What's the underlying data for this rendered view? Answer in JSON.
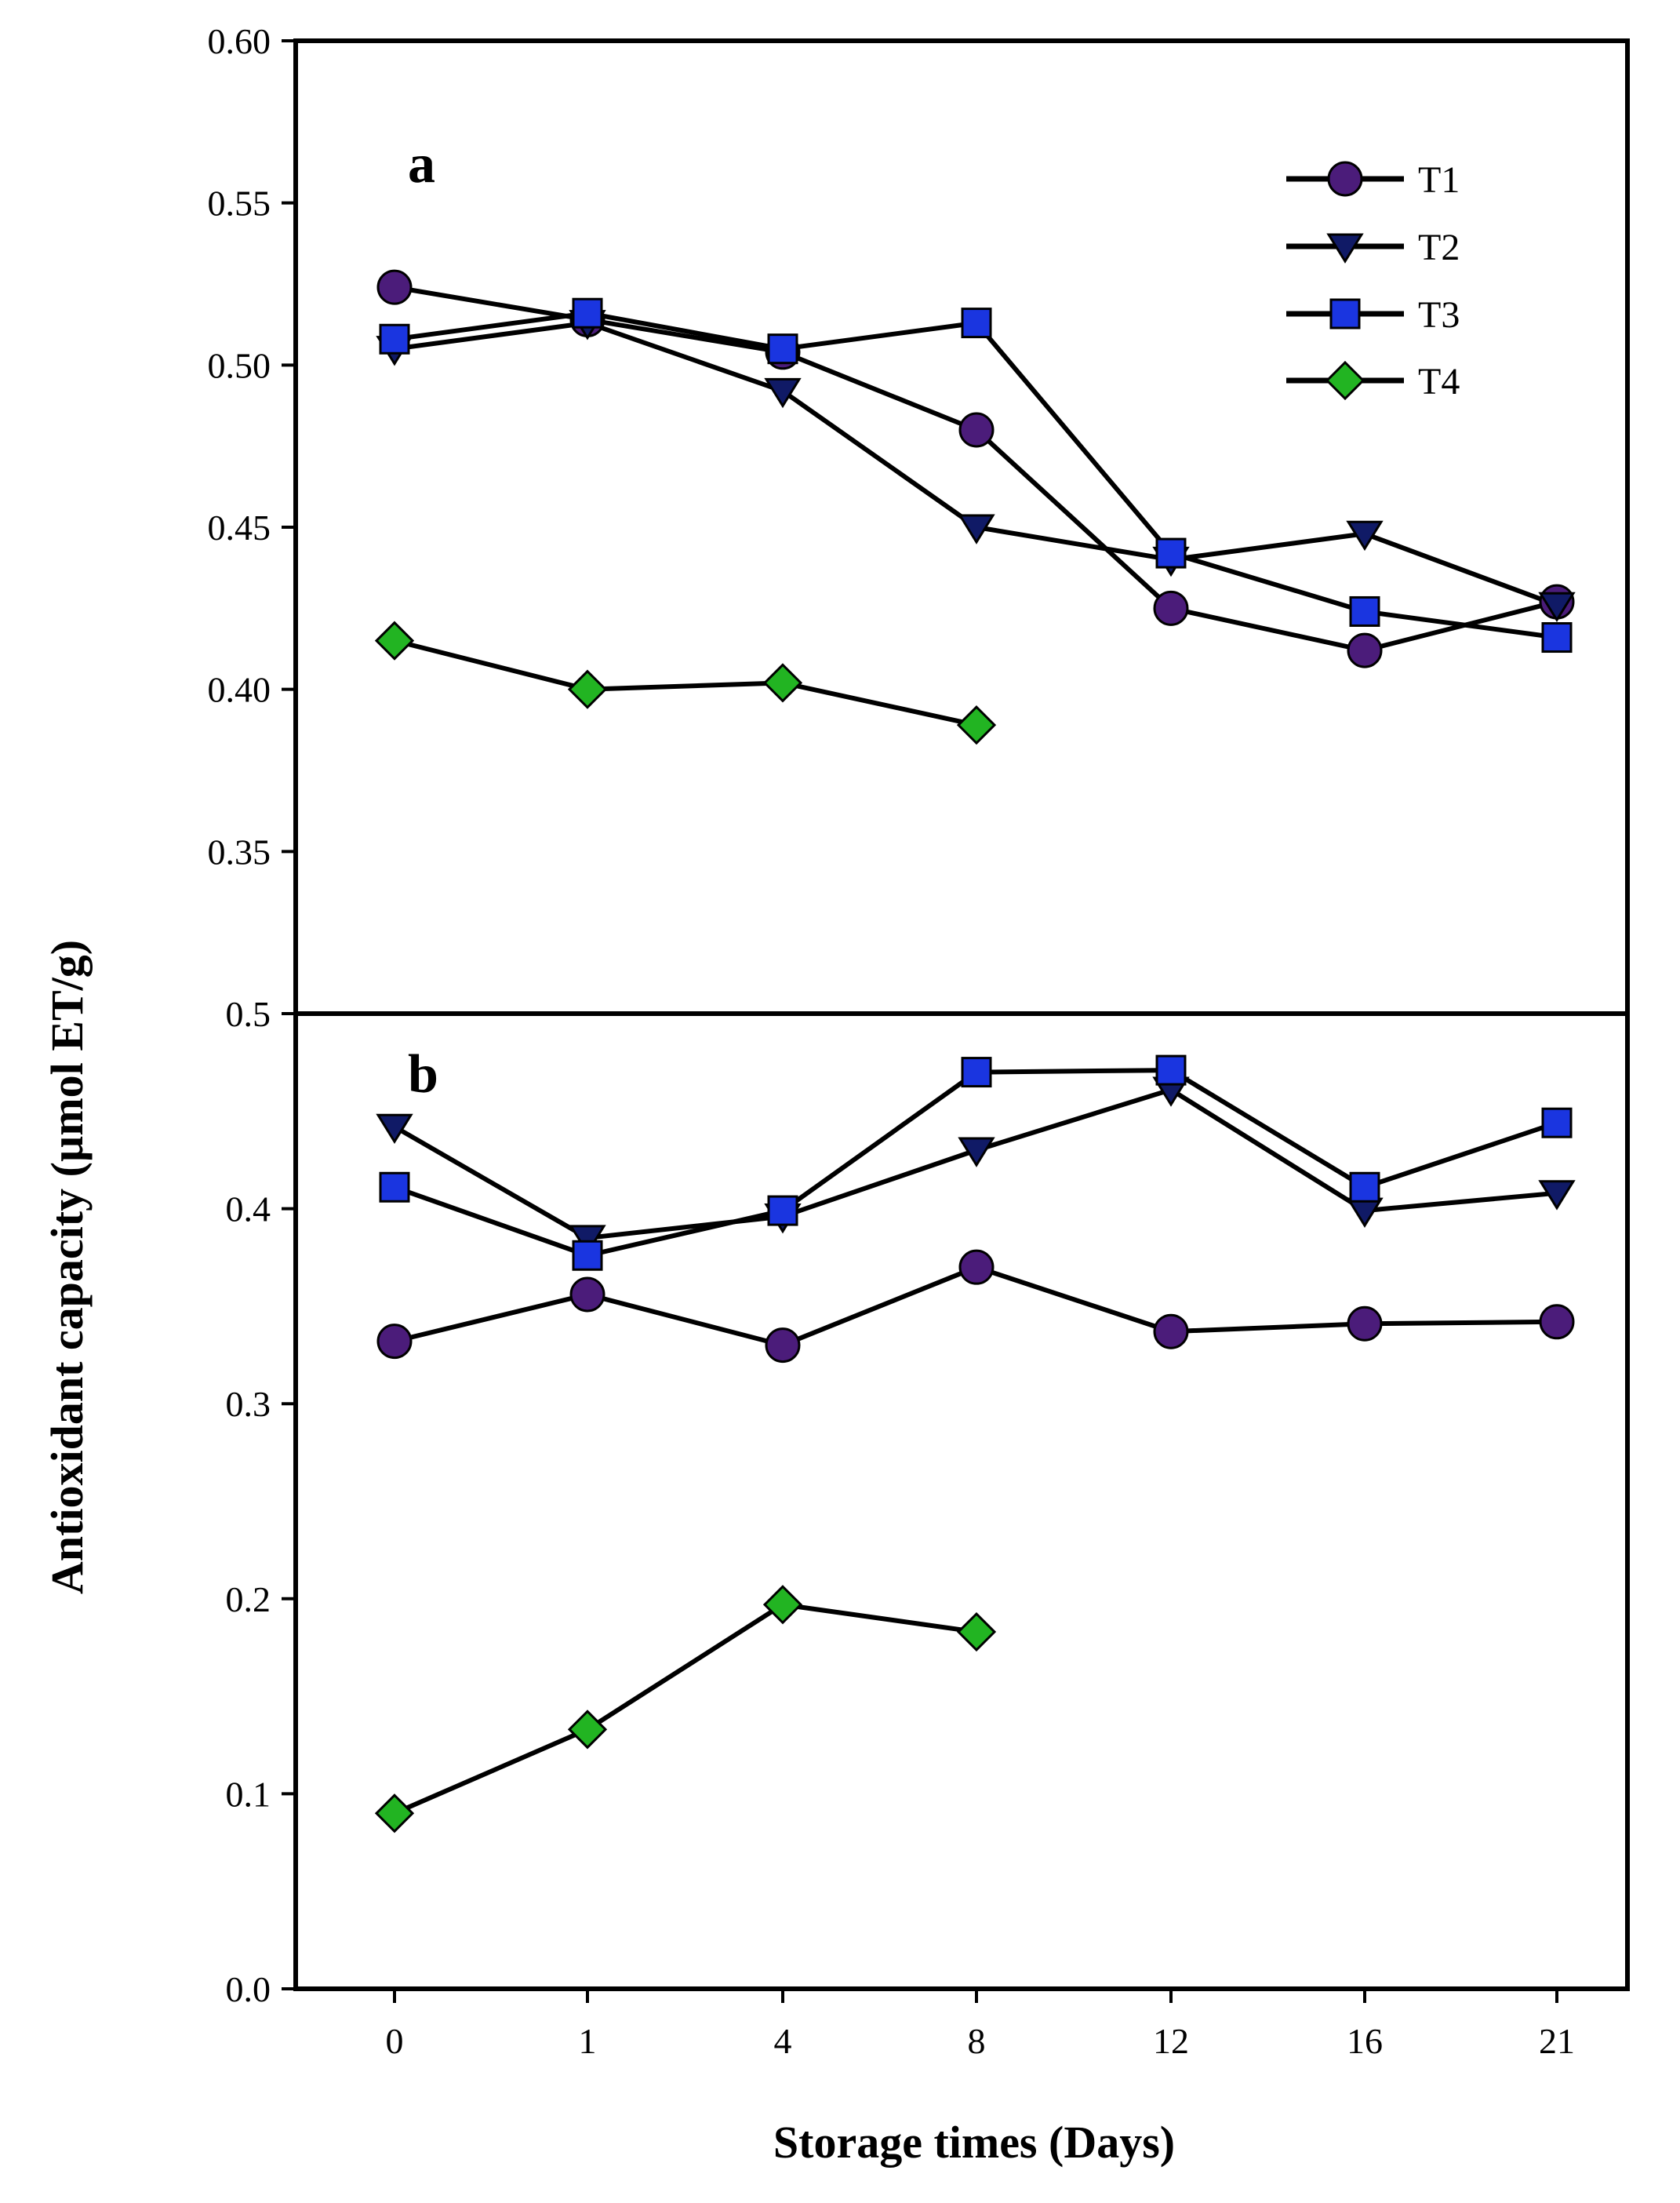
{
  "figure": {
    "xlabel": "Storage times (Days)",
    "ylabel": "Antioxidant capacity (µmol ET/g)",
    "x_categories": [
      "0",
      "1",
      "4",
      "8",
      "12",
      "16",
      "21"
    ]
  },
  "legend": [
    {
      "label": "T1",
      "marker": "circle",
      "color": "#4B1C7A"
    },
    {
      "label": "T2",
      "marker": "triangle-down",
      "color": "#101A66"
    },
    {
      "label": "T3",
      "marker": "square",
      "color": "#1A35E0"
    },
    {
      "label": "T4",
      "marker": "diamond",
      "color": "#22B422"
    }
  ],
  "chart_data": [
    {
      "type": "line",
      "panel": "a",
      "categories": [
        "0",
        "1",
        "4",
        "8",
        "12",
        "16",
        "21"
      ],
      "xlabel": "Storage times (Days)",
      "ylabel": "Antioxidant capacity (µmol ET/g)",
      "ylim": [
        0.3,
        0.6
      ],
      "yticks": [
        0.35,
        0.4,
        0.45,
        0.5,
        0.55,
        0.6
      ],
      "ytick_labels": [
        "0.35",
        "0.40",
        "0.45",
        "0.50",
        "0.55",
        "0.60"
      ],
      "series": [
        {
          "name": "T1",
          "values": [
            0.524,
            0.514,
            0.504,
            0.48,
            0.425,
            0.412,
            0.427
          ]
        },
        {
          "name": "T2",
          "values": [
            0.505,
            0.513,
            0.492,
            0.45,
            0.44,
            0.448,
            0.426
          ]
        },
        {
          "name": "T3",
          "values": [
            0.508,
            0.516,
            0.505,
            0.513,
            0.442,
            0.424,
            0.416
          ]
        },
        {
          "name": "T4",
          "values": [
            0.415,
            0.4,
            0.402,
            0.389,
            null,
            null,
            null
          ]
        }
      ]
    },
    {
      "type": "line",
      "panel": "b",
      "categories": [
        "0",
        "1",
        "4",
        "8",
        "12",
        "16",
        "21"
      ],
      "xlabel": "Storage times (Days)",
      "ylabel": "Antioxidant capacity (µmol ET/g)",
      "ylim": [
        0.0,
        0.5
      ],
      "yticks": [
        0.0,
        0.1,
        0.2,
        0.3,
        0.4,
        0.5
      ],
      "ytick_labels": [
        "0.0",
        "0.1",
        "0.2",
        "0.3",
        "0.4",
        "0.5"
      ],
      "series": [
        {
          "name": "T1",
          "values": [
            0.332,
            0.356,
            0.33,
            0.37,
            0.337,
            0.341,
            0.342
          ]
        },
        {
          "name": "T2",
          "values": [
            0.442,
            0.385,
            0.396,
            0.43,
            0.461,
            0.399,
            0.408
          ]
        },
        {
          "name": "T3",
          "values": [
            0.411,
            0.376,
            0.399,
            0.47,
            0.471,
            0.411,
            0.444
          ]
        },
        {
          "name": "T4",
          "values": [
            0.09,
            0.133,
            0.197,
            0.183,
            null,
            null,
            null
          ]
        }
      ]
    }
  ]
}
